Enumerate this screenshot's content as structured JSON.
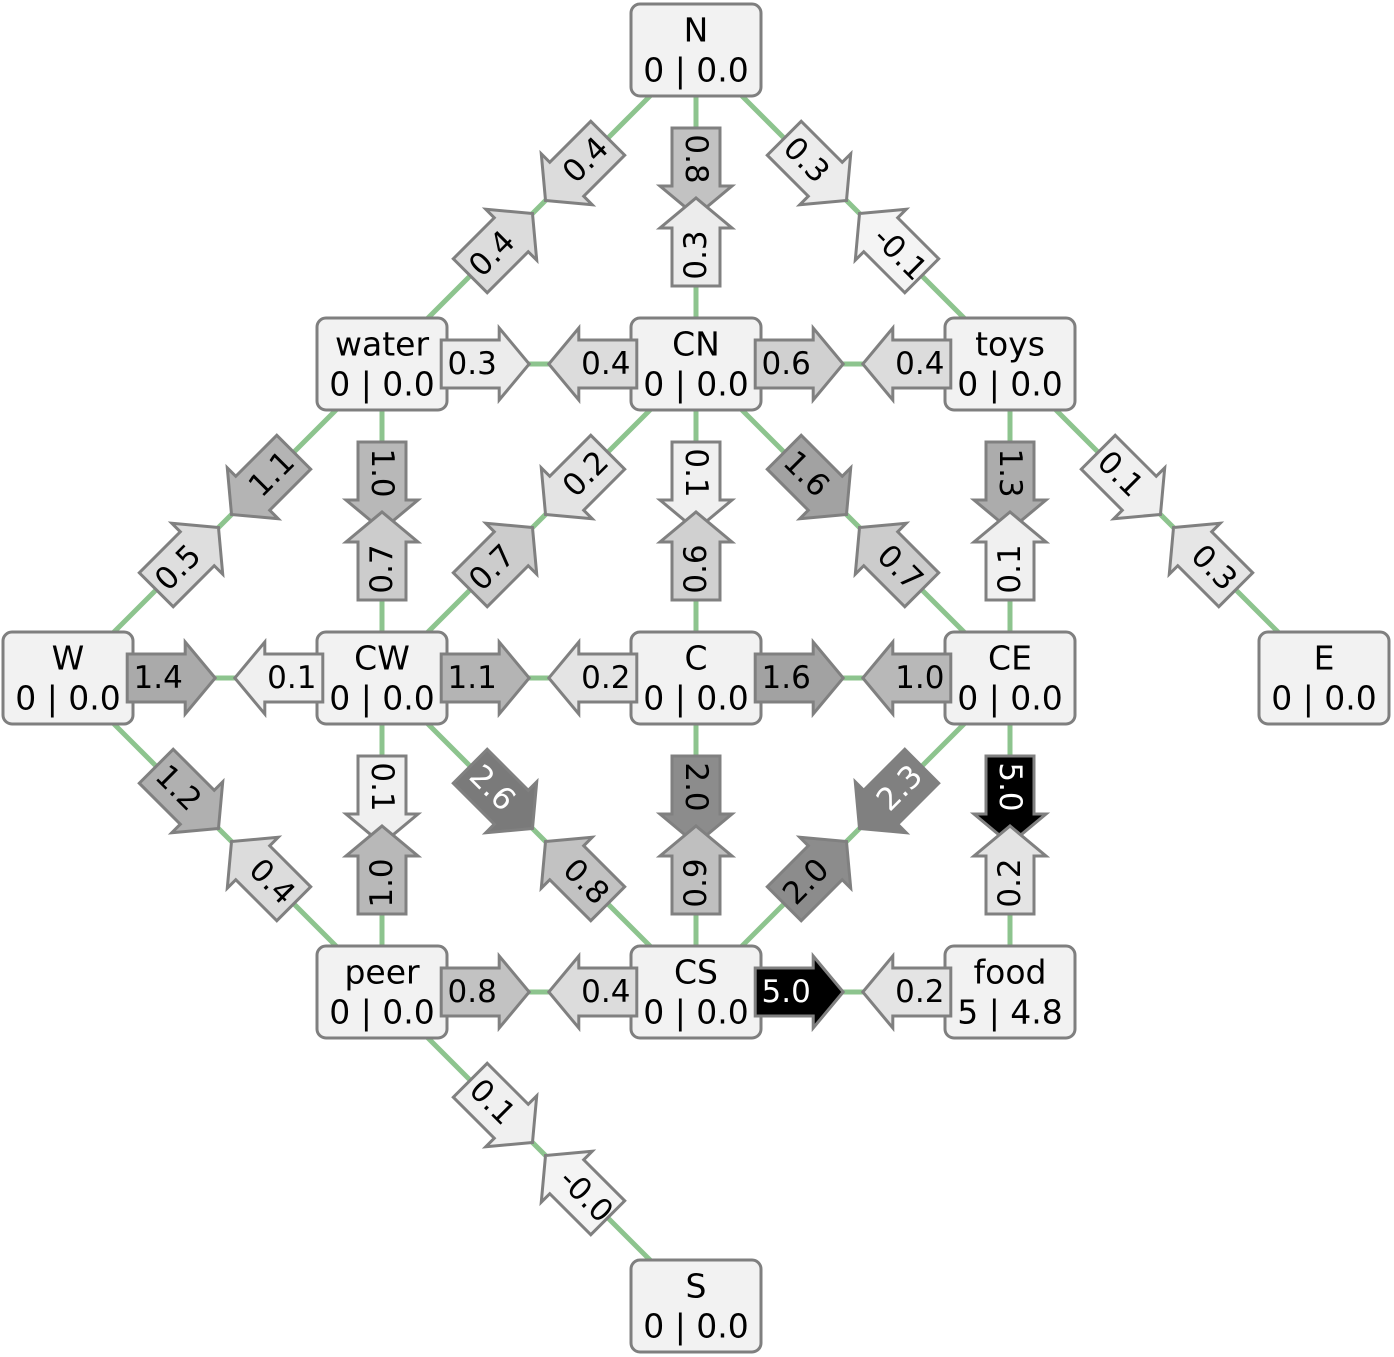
{
  "nodes": [
    {
      "id": "N",
      "label": "N",
      "value": "0 | 0.0"
    },
    {
      "id": "water",
      "label": "water",
      "value": "0 | 0.0"
    },
    {
      "id": "CN",
      "label": "CN",
      "value": "0 | 0.0"
    },
    {
      "id": "toys",
      "label": "toys",
      "value": "0 | 0.0"
    },
    {
      "id": "W",
      "label": "W",
      "value": "0 | 0.0"
    },
    {
      "id": "CW",
      "label": "CW",
      "value": "0 | 0.0"
    },
    {
      "id": "C",
      "label": "C",
      "value": "0 | 0.0"
    },
    {
      "id": "CE",
      "label": "CE",
      "value": "0 | 0.0"
    },
    {
      "id": "E",
      "label": "E",
      "value": "0 | 0.0"
    },
    {
      "id": "peer",
      "label": "peer",
      "value": "0 | 0.0"
    },
    {
      "id": "CS",
      "label": "CS",
      "value": "0 | 0.0"
    },
    {
      "id": "food",
      "label": "food",
      "value": "5 | 4.8"
    },
    {
      "id": "S",
      "label": "S",
      "value": "0 | 0.0"
    }
  ],
  "edges": [
    {
      "from": "N",
      "to": "CN"
    },
    {
      "from": "N",
      "to": "water"
    },
    {
      "from": "N",
      "to": "toys"
    },
    {
      "from": "water",
      "to": "CN"
    },
    {
      "from": "CN",
      "to": "toys"
    },
    {
      "from": "water",
      "to": "W"
    },
    {
      "from": "water",
      "to": "CW"
    },
    {
      "from": "CN",
      "to": "CW"
    },
    {
      "from": "CN",
      "to": "C"
    },
    {
      "from": "CN",
      "to": "CE"
    },
    {
      "from": "toys",
      "to": "CE"
    },
    {
      "from": "toys",
      "to": "E"
    },
    {
      "from": "W",
      "to": "CW"
    },
    {
      "from": "CW",
      "to": "C"
    },
    {
      "from": "C",
      "to": "CE"
    },
    {
      "from": "W",
      "to": "peer"
    },
    {
      "from": "CW",
      "to": "peer"
    },
    {
      "from": "CW",
      "to": "CS"
    },
    {
      "from": "C",
      "to": "CS"
    },
    {
      "from": "CE",
      "to": "CS"
    },
    {
      "from": "CE",
      "to": "food"
    },
    {
      "from": "peer",
      "to": "CS"
    },
    {
      "from": "CS",
      "to": "food"
    },
    {
      "from": "peer",
      "to": "S"
    }
  ],
  "arrows": [
    {
      "label": "0.8",
      "from": "N",
      "to": "CN",
      "t": 0.52,
      "fill": "#c2c2c2",
      "text_color": "#000000"
    },
    {
      "label": "0.3",
      "from": "CN",
      "to": "N",
      "t": 0.52,
      "fill": "#ececec",
      "text_color": "#000000"
    },
    {
      "label": "0.4",
      "from": "N",
      "to": "water",
      "t": 0.52,
      "fill": "#dcdcdc",
      "text_color": "#000000"
    },
    {
      "label": "0.4",
      "from": "water",
      "to": "N",
      "t": 0.52,
      "fill": "#dcdcdc",
      "text_color": "#000000"
    },
    {
      "label": "0.3",
      "from": "N",
      "to": "toys",
      "t": 0.52,
      "fill": "#ececec",
      "text_color": "#000000"
    },
    {
      "label": "-0.1",
      "from": "toys",
      "to": "N",
      "t": 0.52,
      "fill": "#f4f4f4",
      "text_color": "#000000"
    },
    {
      "label": "0.3",
      "from": "water",
      "to": "CN",
      "t": 0.6,
      "fill": "#ececec",
      "text_color": "#000000"
    },
    {
      "label": "0.4",
      "from": "CN",
      "to": "water",
      "t": 0.6,
      "fill": "#dcdcdc",
      "text_color": "#000000"
    },
    {
      "label": "0.6",
      "from": "CN",
      "to": "toys",
      "t": 0.6,
      "fill": "#d0d0d0",
      "text_color": "#000000"
    },
    {
      "label": "0.4",
      "from": "toys",
      "to": "CN",
      "t": 0.6,
      "fill": "#dcdcdc",
      "text_color": "#000000"
    },
    {
      "label": "1.1",
      "from": "water",
      "to": "W",
      "t": 0.52,
      "fill": "#b4b4b4",
      "text_color": "#000000"
    },
    {
      "label": "0.5",
      "from": "W",
      "to": "water",
      "t": 0.52,
      "fill": "#dedede",
      "text_color": "#000000"
    },
    {
      "label": "1.0",
      "from": "water",
      "to": "CW",
      "t": 0.52,
      "fill": "#b8b8b8",
      "text_color": "#000000"
    },
    {
      "label": "0.7",
      "from": "CW",
      "to": "water",
      "t": 0.52,
      "fill": "#cccccc",
      "text_color": "#000000"
    },
    {
      "label": "0.2",
      "from": "CN",
      "to": "CW",
      "t": 0.52,
      "fill": "#e4e4e4",
      "text_color": "#000000"
    },
    {
      "label": "0.7",
      "from": "CW",
      "to": "CN",
      "t": 0.52,
      "fill": "#cccccc",
      "text_color": "#000000"
    },
    {
      "label": "0.1",
      "from": "CN",
      "to": "C",
      "t": 0.52,
      "fill": "#f0f0f0",
      "text_color": "#000000"
    },
    {
      "label": "0.6",
      "from": "C",
      "to": "CN",
      "t": 0.52,
      "fill": "#d0d0d0",
      "text_color": "#000000"
    },
    {
      "label": "1.6",
      "from": "CN",
      "to": "CE",
      "t": 0.52,
      "fill": "#a2a2a2",
      "text_color": "#000000"
    },
    {
      "label": "0.7",
      "from": "CE",
      "to": "CN",
      "t": 0.52,
      "fill": "#cccccc",
      "text_color": "#000000"
    },
    {
      "label": "1.3",
      "from": "toys",
      "to": "CE",
      "t": 0.52,
      "fill": "#acacac",
      "text_color": "#000000"
    },
    {
      "label": "0.1",
      "from": "CE",
      "to": "toys",
      "t": 0.52,
      "fill": "#f0f0f0",
      "text_color": "#000000"
    },
    {
      "label": "0.1",
      "from": "toys",
      "to": "E",
      "t": 0.52,
      "fill": "#f0f0f0",
      "text_color": "#000000"
    },
    {
      "label": "0.3",
      "from": "E",
      "to": "toys",
      "t": 0.52,
      "fill": "#e6e6e6",
      "text_color": "#000000"
    },
    {
      "label": "1.4",
      "from": "W",
      "to": "CW",
      "t": 0.6,
      "fill": "#aaaaaa",
      "text_color": "#000000"
    },
    {
      "label": "0.1",
      "from": "CW",
      "to": "W",
      "t": 0.6,
      "fill": "#f0f0f0",
      "text_color": "#000000"
    },
    {
      "label": "1.1",
      "from": "CW",
      "to": "C",
      "t": 0.6,
      "fill": "#b4b4b4",
      "text_color": "#000000"
    },
    {
      "label": "0.2",
      "from": "C",
      "to": "CW",
      "t": 0.6,
      "fill": "#e4e4e4",
      "text_color": "#000000"
    },
    {
      "label": "1.6",
      "from": "C",
      "to": "CE",
      "t": 0.6,
      "fill": "#a2a2a2",
      "text_color": "#000000"
    },
    {
      "label": "1.0",
      "from": "CE",
      "to": "C",
      "t": 0.6,
      "fill": "#b8b8b8",
      "text_color": "#000000"
    },
    {
      "label": "1.2",
      "from": "W",
      "to": "peer",
      "t": 0.52,
      "fill": "#b0b0b0",
      "text_color": "#000000"
    },
    {
      "label": "0.4",
      "from": "peer",
      "to": "W",
      "t": 0.52,
      "fill": "#dcdcdc",
      "text_color": "#000000"
    },
    {
      "label": "0.1",
      "from": "CW",
      "to": "peer",
      "t": 0.52,
      "fill": "#f0f0f0",
      "text_color": "#000000"
    },
    {
      "label": "1.0",
      "from": "peer",
      "to": "CW",
      "t": 0.52,
      "fill": "#b8b8b8",
      "text_color": "#000000"
    },
    {
      "label": "2.6",
      "from": "CW",
      "to": "CS",
      "t": 0.52,
      "fill": "#7a7a7a",
      "text_color": "#ffffff"
    },
    {
      "label": "0.8",
      "from": "CS",
      "to": "CW",
      "t": 0.52,
      "fill": "#c2c2c2",
      "text_color": "#000000"
    },
    {
      "label": "2.0",
      "from": "C",
      "to": "CS",
      "t": 0.52,
      "fill": "#8c8c8c",
      "text_color": "#000000"
    },
    {
      "label": "0.9",
      "from": "CS",
      "to": "C",
      "t": 0.52,
      "fill": "#bfbfbf",
      "text_color": "#000000"
    },
    {
      "label": "2.3",
      "from": "CE",
      "to": "CS",
      "t": 0.52,
      "fill": "#808080",
      "text_color": "#ffffff"
    },
    {
      "label": "2.0",
      "from": "CS",
      "to": "CE",
      "t": 0.52,
      "fill": "#8c8c8c",
      "text_color": "#000000"
    },
    {
      "label": "5.0",
      "from": "CE",
      "to": "food",
      "t": 0.52,
      "fill": "#000000",
      "text_color": "#ffffff"
    },
    {
      "label": "0.2",
      "from": "food",
      "to": "CE",
      "t": 0.52,
      "fill": "#e4e4e4",
      "text_color": "#000000"
    },
    {
      "label": "0.8",
      "from": "peer",
      "to": "CS",
      "t": 0.6,
      "fill": "#c2c2c2",
      "text_color": "#000000"
    },
    {
      "label": "0.4",
      "from": "CS",
      "to": "peer",
      "t": 0.6,
      "fill": "#dcdcdc",
      "text_color": "#000000"
    },
    {
      "label": "5.0",
      "from": "CS",
      "to": "food",
      "t": 0.6,
      "fill": "#000000",
      "text_color": "#ffffff"
    },
    {
      "label": "0.2",
      "from": "food",
      "to": "CS",
      "t": 0.6,
      "fill": "#e4e4e4",
      "text_color": "#000000"
    },
    {
      "label": "0.1",
      "from": "peer",
      "to": "S",
      "t": 0.52,
      "fill": "#f0f0f0",
      "text_color": "#000000"
    },
    {
      "label": "-0.0",
      "from": "S",
      "to": "peer",
      "t": 0.52,
      "fill": "#f4f4f4",
      "text_color": "#000000"
    }
  ]
}
